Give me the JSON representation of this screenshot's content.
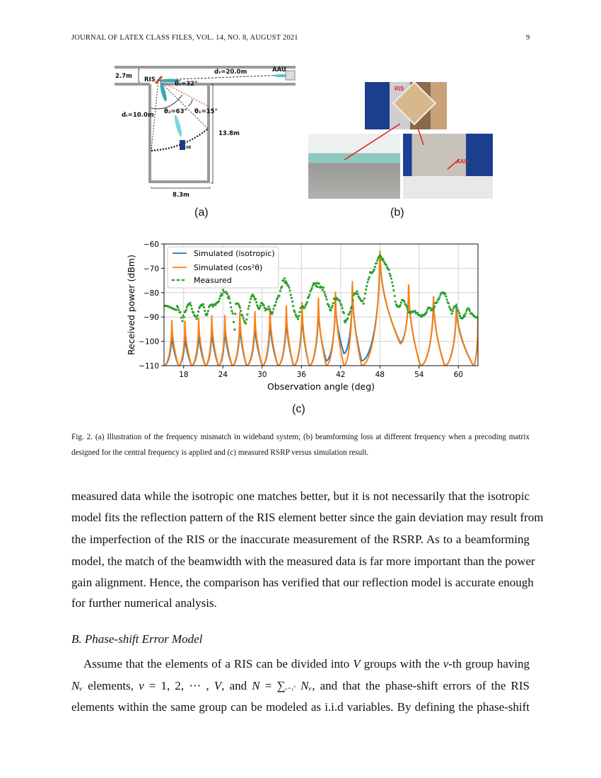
{
  "header": {
    "journal": "JOURNAL OF LATEX CLASS FILES, VOL. 14, NO. 8, AUGUST 2021",
    "page_number": "9"
  },
  "figure_a": {
    "label": "(a)",
    "texts": {
      "corridor_width": "2.7m",
      "ris": "RIS",
      "dt": "dₜ=20.0m",
      "aau": "AAU",
      "theta_t": "θₜ=32°",
      "theta2": "θ₂=63°",
      "theta1": "θ₁=15°",
      "dr": "dᵣ=10.0m",
      "room_depth": "13.8m",
      "room_width": "8.3m",
      "ue": "UE"
    }
  },
  "figure_b": {
    "label": "(b)",
    "ris_tag": "RIS",
    "aau_tag": "AAU"
  },
  "figure_c": {
    "label": "(c)"
  },
  "chart_data": {
    "type": "line",
    "xlabel": "Observation angle (deg)",
    "ylabel": "Received power (dBm)",
    "xlim": [
      15,
      63
    ],
    "ylim": [
      -110,
      -60
    ],
    "xticks": [
      18,
      24,
      30,
      36,
      42,
      48,
      54,
      60
    ],
    "yticks": [
      -60,
      -70,
      -80,
      -90,
      -100,
      -110
    ],
    "grid": true,
    "legend_position": "top-left",
    "series": [
      {
        "name": "Simulated (isotropic)",
        "color": "#1f77b4",
        "style": "line",
        "points": [
          [
            15,
            -110
          ],
          [
            16.2,
            -95.5
          ],
          [
            17.2,
            -110
          ],
          [
            18.2,
            -96
          ],
          [
            19.2,
            -110
          ],
          [
            20.3,
            -94.5
          ],
          [
            21.3,
            -110
          ],
          [
            22.3,
            -93.3
          ],
          [
            23.3,
            -110
          ],
          [
            24.3,
            -93
          ],
          [
            25.4,
            -110
          ],
          [
            26.6,
            -91
          ],
          [
            27.6,
            -110
          ],
          [
            28.9,
            -91
          ],
          [
            30,
            -110
          ],
          [
            31.2,
            -89.7
          ],
          [
            32.4,
            -110
          ],
          [
            33.7,
            -88.3
          ],
          [
            34.8,
            -110
          ],
          [
            36.1,
            -86.5
          ],
          [
            37.2,
            -110
          ],
          [
            38.6,
            -84.7
          ],
          [
            39.8,
            -108
          ],
          [
            41.2,
            -82
          ],
          [
            42.5,
            -105
          ],
          [
            43.8,
            -77
          ],
          [
            45.2,
            -108
          ],
          [
            48,
            -63.8
          ],
          [
            51.1,
            -100.5
          ],
          [
            52.4,
            -77
          ],
          [
            54.2,
            -110
          ],
          [
            56.2,
            -81.5
          ],
          [
            57.9,
            -110
          ],
          [
            59.7,
            -84.5
          ],
          [
            62.3,
            -110
          ],
          [
            63,
            -90
          ]
        ]
      },
      {
        "name": "Simulated (cos²θ)",
        "color": "#ff7f0e",
        "style": "line",
        "points": [
          [
            15,
            -110
          ],
          [
            16.2,
            -91.2
          ],
          [
            17.2,
            -110
          ],
          [
            18.2,
            -91.5
          ],
          [
            19.2,
            -110
          ],
          [
            20.3,
            -90.3
          ],
          [
            21.3,
            -110
          ],
          [
            22.3,
            -89.2
          ],
          [
            23.3,
            -110
          ],
          [
            24.3,
            -89.2
          ],
          [
            25.4,
            -110
          ],
          [
            26.6,
            -87.8
          ],
          [
            27.6,
            -110
          ],
          [
            28.9,
            -87.5
          ],
          [
            30,
            -110
          ],
          [
            31.2,
            -86.2
          ],
          [
            32.4,
            -110
          ],
          [
            33.7,
            -85.2
          ],
          [
            34.8,
            -110
          ],
          [
            36.1,
            -83.8
          ],
          [
            37.2,
            -110
          ],
          [
            38.6,
            -82
          ],
          [
            39.8,
            -110
          ],
          [
            41.2,
            -79.5
          ],
          [
            42.5,
            -110
          ],
          [
            43.8,
            -75.2
          ],
          [
            45.2,
            -110
          ],
          [
            48,
            -62.6
          ],
          [
            51.1,
            -101
          ],
          [
            52.4,
            -76.6
          ],
          [
            54.2,
            -110
          ],
          [
            56.2,
            -81.7
          ],
          [
            57.9,
            -110
          ],
          [
            59.7,
            -85.6
          ],
          [
            62.3,
            -110
          ],
          [
            63,
            -91
          ]
        ]
      },
      {
        "name": "Measured",
        "color": "#2ca02c",
        "style": "dots",
        "points": [
          [
            15,
            -86.2
          ],
          [
            17,
            -86.3
          ],
          [
            17.5,
            -88
          ],
          [
            17.8,
            -91
          ],
          [
            18.5,
            -86
          ],
          [
            19,
            -85
          ],
          [
            19.5,
            -88
          ],
          [
            20,
            -90
          ],
          [
            20.5,
            -86
          ],
          [
            21,
            -85.5
          ],
          [
            21.5,
            -89
          ],
          [
            22,
            -84.5
          ],
          [
            22.5,
            -86
          ],
          [
            23,
            -85
          ],
          [
            23.5,
            -82
          ],
          [
            24.3,
            -78.5
          ],
          [
            25,
            -83
          ],
          [
            25.5,
            -88
          ],
          [
            25.8,
            -95
          ],
          [
            26,
            -84
          ],
          [
            26.5,
            -86
          ],
          [
            27,
            -90
          ],
          [
            27.5,
            -92
          ],
          [
            28,
            -85
          ],
          [
            28.5,
            -81.5
          ],
          [
            29,
            -83
          ],
          [
            29.5,
            -86
          ],
          [
            30,
            -84
          ],
          [
            30.5,
            -88
          ],
          [
            31,
            -86
          ],
          [
            31.5,
            -88
          ],
          [
            32,
            -85
          ],
          [
            32.5,
            -82
          ],
          [
            33.3,
            -74.5
          ],
          [
            34,
            -77
          ],
          [
            34.5,
            -83
          ],
          [
            35,
            -88
          ],
          [
            35.5,
            -90
          ],
          [
            36,
            -86
          ],
          [
            36.5,
            -87
          ],
          [
            37,
            -82
          ],
          [
            37.5,
            -78
          ],
          [
            38,
            -76.5
          ],
          [
            38.7,
            -77
          ],
          [
            39.5,
            -79
          ],
          [
            40,
            -85
          ],
          [
            40.5,
            -88
          ],
          [
            41,
            -82
          ],
          [
            41.5,
            -82
          ],
          [
            42,
            -85
          ],
          [
            42.5,
            -89
          ],
          [
            42.7,
            -93
          ],
          [
            43.2,
            -89
          ],
          [
            43.7,
            -85
          ],
          [
            44,
            -81.5
          ],
          [
            44.5,
            -80
          ],
          [
            45,
            -82
          ],
          [
            45.5,
            -84
          ],
          [
            46,
            -78
          ],
          [
            46.5,
            -72
          ],
          [
            47,
            -70.5
          ],
          [
            47.5,
            -67.5
          ],
          [
            48,
            -65.5
          ],
          [
            48.5,
            -66.5
          ],
          [
            49,
            -68
          ],
          [
            49.5,
            -72
          ],
          [
            50,
            -78
          ],
          [
            50.5,
            -85
          ],
          [
            51,
            -85
          ],
          [
            51.5,
            -83
          ],
          [
            52,
            -86
          ],
          [
            52.5,
            -88
          ],
          [
            53,
            -87
          ],
          [
            53.5,
            -88.5
          ],
          [
            54,
            -90
          ],
          [
            54.5,
            -89
          ],
          [
            55,
            -88
          ],
          [
            55.5,
            -86.5
          ],
          [
            56,
            -88
          ],
          [
            56.5,
            -84
          ],
          [
            57,
            -82
          ],
          [
            57.5,
            -80.5
          ],
          [
            58,
            -81
          ],
          [
            58.5,
            -84
          ],
          [
            59,
            -88
          ],
          [
            59.5,
            -86
          ],
          [
            60,
            -88
          ],
          [
            60.5,
            -90
          ],
          [
            61,
            -89
          ],
          [
            61.5,
            -87
          ],
          [
            62,
            -89
          ],
          [
            63,
            -89.5
          ]
        ]
      }
    ]
  },
  "caption": "Fig. 2.  (a) Illustration of the frequency mismatch in wideband system; (b) beamforming loss at different frequency when a precoding matrix designed for the central frequency is applied and (c) measured RSRP versus simulation result.",
  "body": {
    "para1": [
      "measured data while the isotropic one matches better, but it is not necessarily that the isotropic",
      "model fits the reflection pattern of the RIS element better since the gain deviation may result from",
      "the imperfection of the RIS or the inaccurate measurement of the RSRP. As to a beamforming",
      "model, the match of the beamwidth with the measured data is far more important than the power",
      "gain alignment. Hence, the comparison has verified that our reflection model is accurate enough",
      "for further numerical analysis."
    ],
    "section_heading": "B.  Phase-shift Error Model",
    "para2_line1": {
      "a": "Assume that the elements of a RIS can be divided into ",
      "V": "V",
      "b": " groups with the ",
      "v": "v",
      "c": "-th group having"
    },
    "para2_line2": {
      "Nv": "Nᵥ",
      "a": " elements, ",
      "v": "v",
      "b": " = 1, 2, ⋯ , ",
      "V": "V",
      "c": ", and ",
      "N": "N",
      "d": " = ∑",
      "sum": "ᵥ₌₁ᵛ",
      "Nv2": " Nᵥ",
      "e": ", and that the phase-shift errors of the RIS"
    },
    "para2_line3": "elements within the same group can be modeled as i.i.d variables. By defining the phase-shift"
  }
}
